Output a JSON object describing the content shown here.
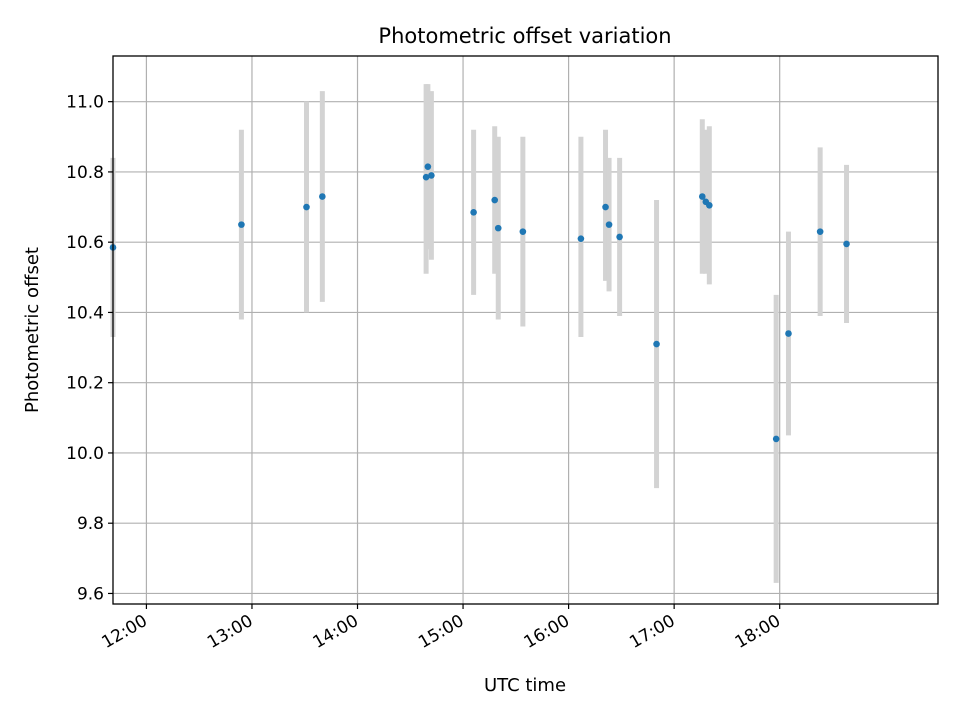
{
  "chart_data": {
    "type": "scatter",
    "title": "Photometric offset variation",
    "xlabel": "UTC time",
    "ylabel": "Photometric offset",
    "grid": true,
    "legend": "none",
    "xlim": [
      "11:41",
      "19:30"
    ],
    "ylim": [
      9.57,
      11.13
    ],
    "x_ticks": [
      "12:00",
      "13:00",
      "14:00",
      "15:00",
      "16:00",
      "17:00",
      "18:00"
    ],
    "y_ticks": [
      "9.6",
      "9.8",
      "10.0",
      "10.2",
      "10.4",
      "10.6",
      "10.8",
      "11.0"
    ],
    "colors": {
      "points": "#1f77b4",
      "errorbars": "#d3d3d3",
      "grid": "#b0b0b0",
      "axes": "#000000"
    },
    "points": [
      {
        "x": "11:41",
        "y": 10.585,
        "yerr_low": 10.33,
        "yerr_high": 10.84
      },
      {
        "x": "12:54",
        "y": 10.65,
        "yerr_low": 10.38,
        "yerr_high": 10.92
      },
      {
        "x": "13:31",
        "y": 10.7,
        "yerr_low": 10.4,
        "yerr_high": 11.0
      },
      {
        "x": "13:40",
        "y": 10.73,
        "yerr_low": 10.43,
        "yerr_high": 11.03
      },
      {
        "x": "14:39",
        "y": 10.785,
        "yerr_low": 10.51,
        "yerr_high": 11.05
      },
      {
        "x": "14:40",
        "y": 10.815,
        "yerr_low": 10.58,
        "yerr_high": 11.05
      },
      {
        "x": "14:42",
        "y": 10.79,
        "yerr_low": 10.55,
        "yerr_high": 11.03
      },
      {
        "x": "15:06",
        "y": 10.685,
        "yerr_low": 10.45,
        "yerr_high": 10.92
      },
      {
        "x": "15:18",
        "y": 10.72,
        "yerr_low": 10.51,
        "yerr_high": 10.93
      },
      {
        "x": "15:20",
        "y": 10.64,
        "yerr_low": 10.38,
        "yerr_high": 10.9
      },
      {
        "x": "15:34",
        "y": 10.63,
        "yerr_low": 10.36,
        "yerr_high": 10.9
      },
      {
        "x": "16:07",
        "y": 10.61,
        "yerr_low": 10.33,
        "yerr_high": 10.9
      },
      {
        "x": "16:21",
        "y": 10.7,
        "yerr_low": 10.49,
        "yerr_high": 10.92
      },
      {
        "x": "16:23",
        "y": 10.65,
        "yerr_low": 10.46,
        "yerr_high": 10.84
      },
      {
        "x": "16:29",
        "y": 10.615,
        "yerr_low": 10.39,
        "yerr_high": 10.84
      },
      {
        "x": "16:50",
        "y": 10.31,
        "yerr_low": 9.9,
        "yerr_high": 10.72
      },
      {
        "x": "17:16",
        "y": 10.73,
        "yerr_low": 10.51,
        "yerr_high": 10.95
      },
      {
        "x": "17:18",
        "y": 10.715,
        "yerr_low": 10.51,
        "yerr_high": 10.92
      },
      {
        "x": "17:20",
        "y": 10.705,
        "yerr_low": 10.48,
        "yerr_high": 10.93
      },
      {
        "x": "17:58",
        "y": 10.04,
        "yerr_low": 9.63,
        "yerr_high": 10.45
      },
      {
        "x": "18:05",
        "y": 10.34,
        "yerr_low": 10.05,
        "yerr_high": 10.63
      },
      {
        "x": "18:23",
        "y": 10.63,
        "yerr_low": 10.39,
        "yerr_high": 10.87
      },
      {
        "x": "18:38",
        "y": 10.595,
        "yerr_low": 10.37,
        "yerr_high": 10.82
      }
    ]
  }
}
